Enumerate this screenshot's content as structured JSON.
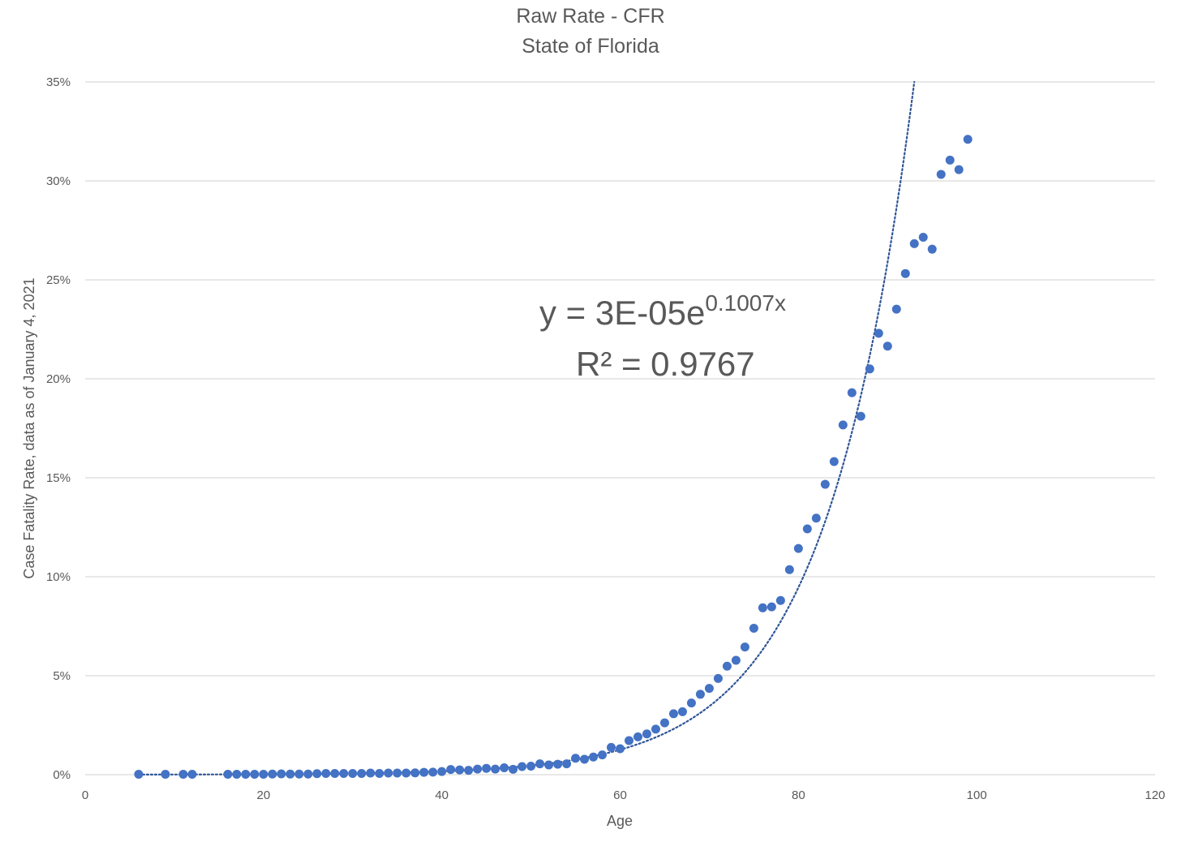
{
  "chart_data": {
    "type": "scatter",
    "title": "Raw Rate - CFR",
    "subtitle": "State of Florida",
    "xlabel": "Age",
    "ylabel": "Case Fatality Rate, data as of January 4, 2021",
    "xlim": [
      0,
      120
    ],
    "ylim": [
      0,
      0.35
    ],
    "xticks": [
      0,
      20,
      40,
      60,
      80,
      100,
      120
    ],
    "xtick_labels": [
      "0",
      "20",
      "40",
      "60",
      "80",
      "100",
      "120"
    ],
    "yticks": [
      0,
      0.05,
      0.1,
      0.15,
      0.2,
      0.25,
      0.3,
      0.35
    ],
    "ytick_labels": [
      "0%",
      "5%",
      "10%",
      "15%",
      "20%",
      "25%",
      "30%",
      "35%"
    ],
    "grid": "horizontal",
    "marker_color": "#4472C4",
    "trendline": {
      "type": "exponential",
      "a": 3e-05,
      "b": 0.1007,
      "style": "dotted",
      "color": "#2F5597",
      "equation_base": "y = 3E-05e",
      "equation_exponent": "0.1007x",
      "r_squared": "R² = 0.9767"
    },
    "x": [
      6,
      9,
      11,
      12,
      16,
      17,
      18,
      19,
      20,
      21,
      22,
      23,
      24,
      25,
      26,
      27,
      28,
      29,
      30,
      31,
      32,
      33,
      34,
      35,
      36,
      37,
      38,
      39,
      40,
      41,
      42,
      43,
      44,
      45,
      46,
      47,
      48,
      49,
      50,
      51,
      52,
      53,
      54,
      55,
      56,
      57,
      58,
      59,
      60,
      61,
      62,
      63,
      64,
      65,
      66,
      67,
      68,
      69,
      70,
      71,
      72,
      73,
      74,
      75,
      76,
      77,
      78,
      79,
      80,
      81,
      82,
      83,
      84,
      85,
      86,
      87,
      88,
      89,
      90,
      91,
      92,
      93,
      94,
      95,
      96,
      97,
      98,
      99
    ],
    "y": [
      0.0002,
      0.0002,
      0.0002,
      0.0002,
      0.0002,
      0.0002,
      0.0002,
      0.0002,
      0.0002,
      0.0003,
      0.0004,
      0.0003,
      0.0003,
      0.0003,
      0.0005,
      0.0006,
      0.0006,
      0.0006,
      0.0006,
      0.0006,
      0.0008,
      0.0006,
      0.0008,
      0.0008,
      0.0008,
      0.0009,
      0.0012,
      0.0013,
      0.0016,
      0.0026,
      0.0024,
      0.0022,
      0.0028,
      0.0032,
      0.0028,
      0.0035,
      0.0027,
      0.0041,
      0.0043,
      0.0055,
      0.0049,
      0.0053,
      0.0055,
      0.0083,
      0.0078,
      0.0089,
      0.01,
      0.0138,
      0.0131,
      0.0172,
      0.0191,
      0.0206,
      0.023,
      0.0262,
      0.0308,
      0.0318,
      0.0362,
      0.0406,
      0.0436,
      0.0486,
      0.0548,
      0.0578,
      0.0645,
      0.074,
      0.0843,
      0.0848,
      0.088,
      0.1036,
      0.1143,
      0.1242,
      0.1296,
      0.1467,
      0.1582,
      0.1767,
      0.193,
      0.1811,
      0.205,
      0.223,
      0.2165,
      0.2352,
      0.2532,
      0.2683,
      0.2715,
      0.2655,
      0.3033,
      0.3105,
      0.3057,
      0.321
    ]
  }
}
